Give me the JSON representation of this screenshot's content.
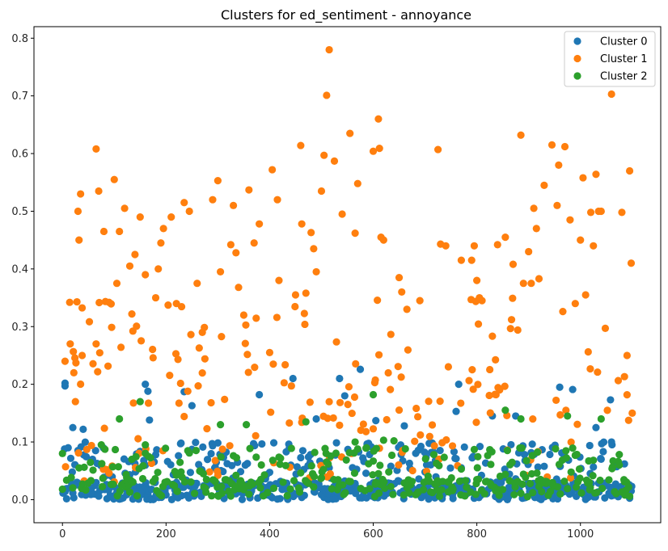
{
  "chart_data": {
    "type": "scatter",
    "title": "Clusters for ed_sentiment - annoyance",
    "xlabel": "",
    "ylabel": "",
    "xlim": [
      -55,
      1155
    ],
    "ylim": [
      -0.04,
      0.82
    ],
    "x_ticks": [
      0,
      200,
      400,
      600,
      800,
      1000
    ],
    "y_ticks": [
      0.0,
      0.1,
      0.2,
      0.3,
      0.4,
      0.5,
      0.6,
      0.7,
      0.8
    ],
    "grid": false,
    "legend_position": "top-right",
    "n_points": 1100,
    "series": [
      {
        "name": "Cluster 0",
        "color": "#1f77b4",
        "notable_points": [
          [
            5,
            0.202
          ],
          [
            5,
            0.197
          ],
          [
            20,
            0.125
          ],
          [
            40,
            0.122
          ],
          [
            160,
            0.2
          ],
          [
            165,
            0.188
          ],
          [
            168,
            0.138
          ],
          [
            235,
            0.187
          ],
          [
            250,
            0.163
          ],
          [
            380,
            0.182
          ],
          [
            445,
            0.21
          ],
          [
            490,
            0.14
          ],
          [
            535,
            0.21
          ],
          [
            545,
            0.18
          ],
          [
            575,
            0.226
          ],
          [
            605,
            0.137
          ],
          [
            660,
            0.128
          ],
          [
            760,
            0.153
          ],
          [
            765,
            0.2
          ],
          [
            830,
            0.145
          ],
          [
            875,
            0.145
          ],
          [
            960,
            0.195
          ],
          [
            985,
            0.191
          ],
          [
            1030,
            0.125
          ],
          [
            1058,
            0.173
          ],
          [
            1060,
            0.1
          ]
        ],
        "dense_band": {
          "y_min": 0.0,
          "y_max": 0.1
        }
      },
      {
        "name": "Cluster 1",
        "color": "#ff7f0e",
        "points": [
          [
            5,
            0.24
          ],
          [
            15,
            0.27
          ],
          [
            22,
            0.22
          ],
          [
            25,
            0.17
          ],
          [
            28,
            0.343
          ],
          [
            30,
            0.5
          ],
          [
            32,
            0.45
          ],
          [
            35,
            0.53
          ],
          [
            38,
            0.25
          ],
          [
            65,
            0.608
          ],
          [
            70,
            0.535
          ],
          [
            80,
            0.465
          ],
          [
            90,
            0.342
          ],
          [
            100,
            0.555
          ],
          [
            105,
            0.375
          ],
          [
            110,
            0.465
          ],
          [
            120,
            0.505
          ],
          [
            130,
            0.405
          ],
          [
            140,
            0.425
          ],
          [
            150,
            0.49
          ],
          [
            160,
            0.39
          ],
          [
            180,
            0.35
          ],
          [
            185,
            0.4
          ],
          [
            190,
            0.445
          ],
          [
            195,
            0.47
          ],
          [
            210,
            0.49
          ],
          [
            220,
            0.34
          ],
          [
            235,
            0.515
          ],
          [
            245,
            0.5
          ],
          [
            260,
            0.375
          ],
          [
            270,
            0.29
          ],
          [
            290,
            0.52
          ],
          [
            300,
            0.553
          ],
          [
            305,
            0.395
          ],
          [
            325,
            0.442
          ],
          [
            330,
            0.51
          ],
          [
            335,
            0.428
          ],
          [
            340,
            0.368
          ],
          [
            350,
            0.32
          ],
          [
            360,
            0.537
          ],
          [
            370,
            0.445
          ],
          [
            380,
            0.478
          ],
          [
            400,
            0.255
          ],
          [
            405,
            0.572
          ],
          [
            415,
            0.52
          ],
          [
            418,
            0.38
          ],
          [
            450,
            0.355
          ],
          [
            460,
            0.614
          ],
          [
            462,
            0.478
          ],
          [
            470,
            0.358
          ],
          [
            480,
            0.463
          ],
          [
            485,
            0.435
          ],
          [
            490,
            0.395
          ],
          [
            500,
            0.535
          ],
          [
            505,
            0.597
          ],
          [
            510,
            0.701
          ],
          [
            515,
            0.78
          ],
          [
            525,
            0.587
          ],
          [
            540,
            0.495
          ],
          [
            555,
            0.635
          ],
          [
            565,
            0.462
          ],
          [
            570,
            0.548
          ],
          [
            600,
            0.604
          ],
          [
            610,
            0.66
          ],
          [
            612,
            0.609
          ],
          [
            615,
            0.455
          ],
          [
            620,
            0.45
          ],
          [
            650,
            0.385
          ],
          [
            655,
            0.36
          ],
          [
            665,
            0.33
          ],
          [
            690,
            0.345
          ],
          [
            725,
            0.607
          ],
          [
            730,
            0.443
          ],
          [
            740,
            0.44
          ],
          [
            770,
            0.415
          ],
          [
            790,
            0.415
          ],
          [
            795,
            0.44
          ],
          [
            800,
            0.38
          ],
          [
            805,
            0.35
          ],
          [
            810,
            0.345
          ],
          [
            840,
            0.442
          ],
          [
            855,
            0.455
          ],
          [
            870,
            0.408
          ],
          [
            885,
            0.632
          ],
          [
            890,
            0.375
          ],
          [
            900,
            0.43
          ],
          [
            905,
            0.375
          ],
          [
            910,
            0.505
          ],
          [
            915,
            0.47
          ],
          [
            920,
            0.383
          ],
          [
            930,
            0.545
          ],
          [
            945,
            0.615
          ],
          [
            955,
            0.51
          ],
          [
            958,
            0.58
          ],
          [
            970,
            0.612
          ],
          [
            980,
            0.485
          ],
          [
            990,
            0.34
          ],
          [
            1000,
            0.45
          ],
          [
            1005,
            0.558
          ],
          [
            1010,
            0.355
          ],
          [
            1020,
            0.498
          ],
          [
            1025,
            0.44
          ],
          [
            1030,
            0.564
          ],
          [
            1035,
            0.5
          ],
          [
            1040,
            0.5
          ],
          [
            1060,
            0.703
          ],
          [
            1080,
            0.498
          ],
          [
            1090,
            0.25
          ],
          [
            1095,
            0.57
          ],
          [
            1098,
            0.41
          ],
          [
            1100,
            0.15
          ]
        ],
        "dense_band": {
          "y_min": 0.0,
          "y_max": 0.35
        }
      },
      {
        "name": "Cluster 2",
        "color": "#2ca02c",
        "notable_points": [
          [
            0,
            0.08
          ],
          [
            75,
            0.095
          ],
          [
            110,
            0.14
          ],
          [
            150,
            0.17
          ],
          [
            160,
            0.095
          ],
          [
            305,
            0.13
          ],
          [
            355,
            0.13
          ],
          [
            470,
            0.135
          ],
          [
            565,
            0.1
          ],
          [
            600,
            0.182
          ],
          [
            620,
            0.103
          ],
          [
            640,
            0.102
          ],
          [
            855,
            0.155
          ],
          [
            885,
            0.14
          ],
          [
            975,
            0.145
          ],
          [
            1040,
            0.14
          ],
          [
            1075,
            0.06
          ]
        ],
        "dense_band": {
          "y_min": 0.0,
          "y_max": 0.1
        }
      }
    ]
  }
}
